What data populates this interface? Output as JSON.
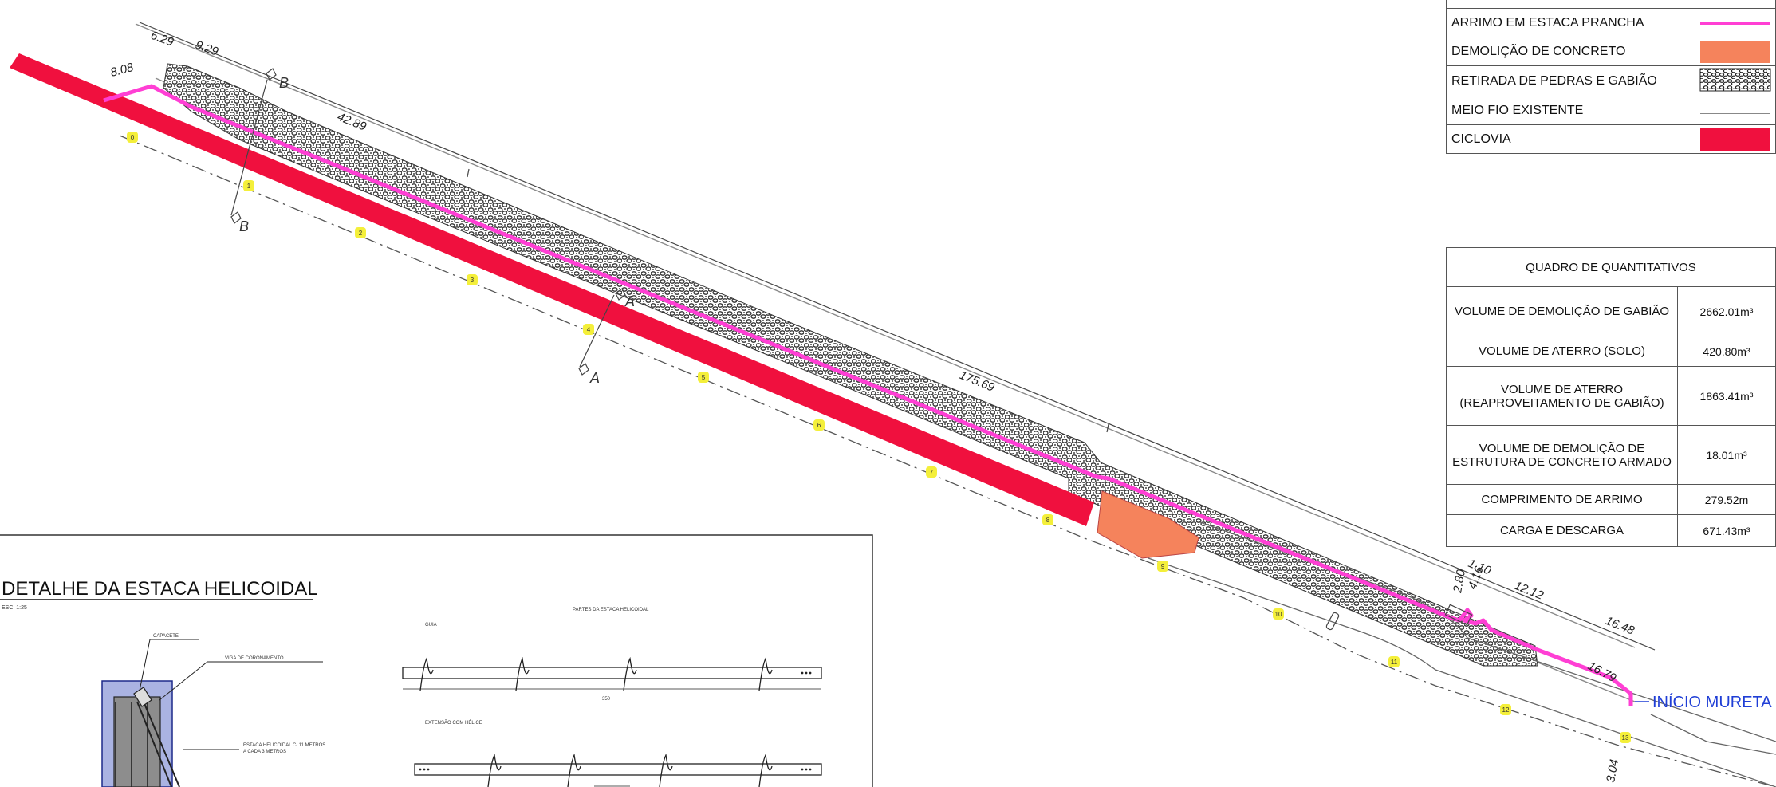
{
  "legend": {
    "rows": [
      {
        "label": "ARRIMO EM ESTACA PRANCHA",
        "symbol": "magenta-line",
        "color": "#ff3fd4"
      },
      {
        "label": "DEMOLIÇÃO DE CONCRETO",
        "symbol": "orange-fill",
        "color": "#f5835c"
      },
      {
        "label": "RETIRADA DE PEDRAS E GABIÃO",
        "symbol": "stone-hatch",
        "color": "#555555"
      },
      {
        "label": "MEIO FIO EXISTENTE",
        "symbol": "double-line",
        "color": "#888888"
      },
      {
        "label": "CICLOVIA",
        "symbol": "red-fill",
        "color": "#f0103e"
      }
    ]
  },
  "quantities": {
    "title": "QUADRO DE QUANTITATIVOS",
    "rows": [
      {
        "label": "VOLUME DE DEMOLIÇÃO DE GABIÃO",
        "value": "2662.01m³"
      },
      {
        "label": "VOLUME DE ATERRO  (SOLO)",
        "value": "420.80m³"
      },
      {
        "label": "VOLUME DE ATERRO (REAPROVEITAMENTO DE GABIÃO)",
        "value": "1863.41m³"
      },
      {
        "label": "VOLUME DE DEMOLIÇÃO DE ESTRUTURA DE CONCRETO ARMADO",
        "value": "18.01m³"
      },
      {
        "label": "COMPRIMENTO DE ARRIMO",
        "value": "279.52m"
      },
      {
        "label": "CARGA E DESCARGA",
        "value": "671.43m³"
      }
    ]
  },
  "plan": {
    "dimensions": {
      "d1": "8.08",
      "d2": "6.29",
      "d3": "9.29",
      "d4": "42.89",
      "d5": "175.69",
      "d6": "1.10",
      "d7": "12.12",
      "d8": "16.48",
      "d9": "16.79",
      "d10": "3.04",
      "d11": "2.80",
      "d12": "4.16"
    },
    "section_a": "A",
    "section_b": "B",
    "start_label": "INÍCIO MURETA",
    "stations": [
      "0",
      "1",
      "2",
      "3",
      "4",
      "5",
      "6",
      "7",
      "8",
      "9",
      "10",
      "11",
      "12",
      "13"
    ]
  },
  "detail": {
    "title": "DETALHE DA ESTACA HELICOIDAL",
    "scale": "ESC. 1:25",
    "parts_title": "PARTES DA ESTACA HELICOIDAL",
    "guia_label": "GUIA",
    "guia_length": "350",
    "extension_label": "EXTENSÃO COM HÉLICE",
    "capacete": "CAPACETE",
    "viga": "VIGA DE CORONAMENTO",
    "estaca_line1": "ESTACA HELICOIDAL C/ 11 METROS",
    "estaca_line2": "A CADA 3 METROS"
  },
  "colors": {
    "ciclovia": "#f0103e",
    "arrimo": "#ff3fd4",
    "concrete": "#f5835c",
    "station_marker": "#f4ef3a",
    "start_label": "#1f3ed6"
  }
}
